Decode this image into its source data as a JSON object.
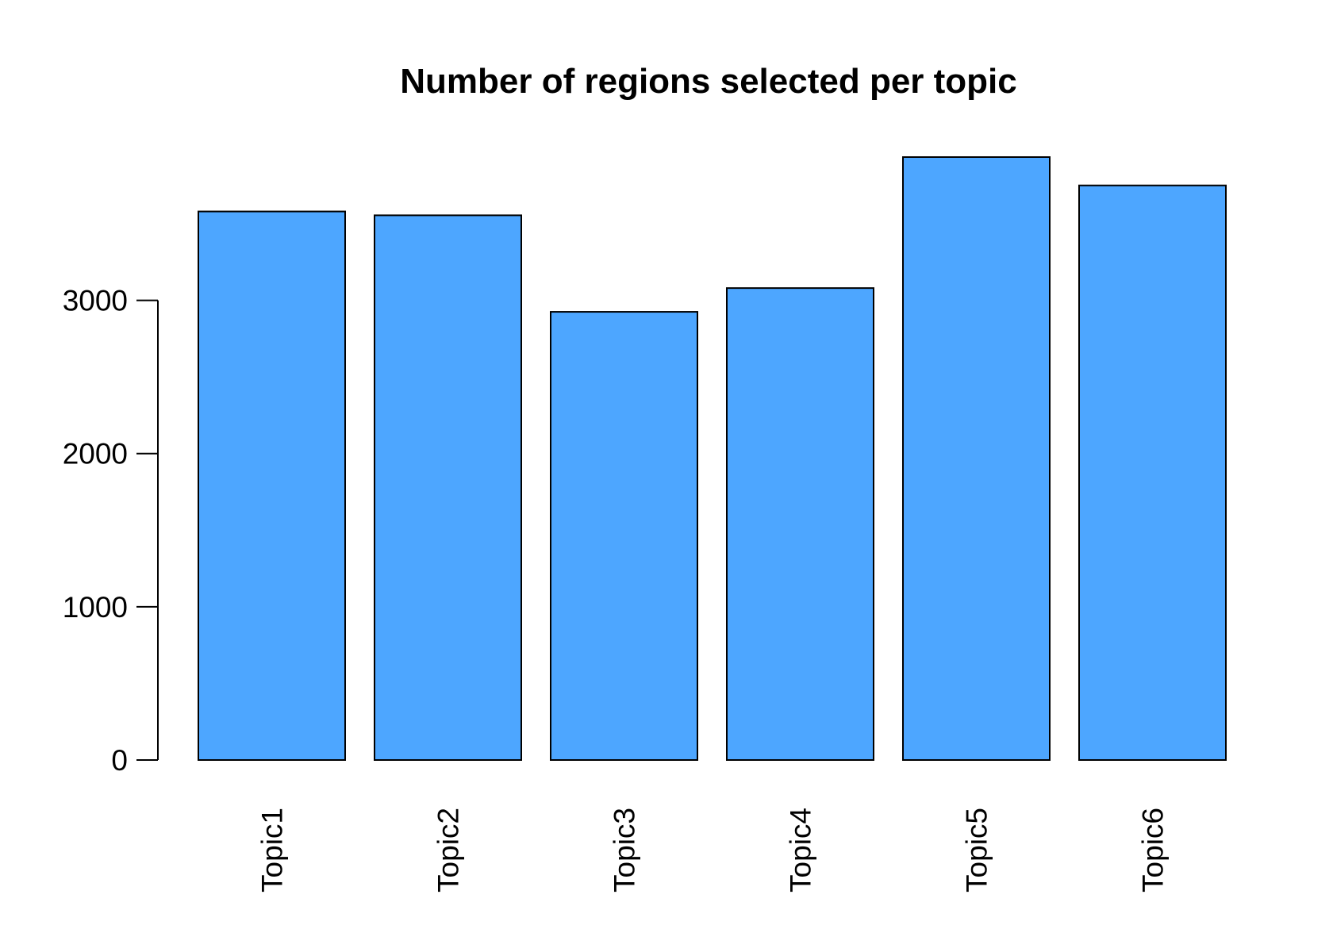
{
  "chart_data": {
    "type": "bar",
    "title": "Number of regions selected per topic",
    "xlabel": "",
    "ylabel": "",
    "categories": [
      "Topic1",
      "Topic2",
      "Topic3",
      "Topic4",
      "Topic5",
      "Topic6"
    ],
    "values": [
      3580,
      3555,
      2925,
      3080,
      3935,
      3750
    ],
    "ylim": [
      0,
      3935
    ],
    "yticks": [
      0,
      1000,
      2000,
      3000
    ],
    "ytick_labels": [
      "0",
      "1000",
      "2000",
      "3000"
    ],
    "bar_color": "#4da6ff",
    "grid": false
  }
}
